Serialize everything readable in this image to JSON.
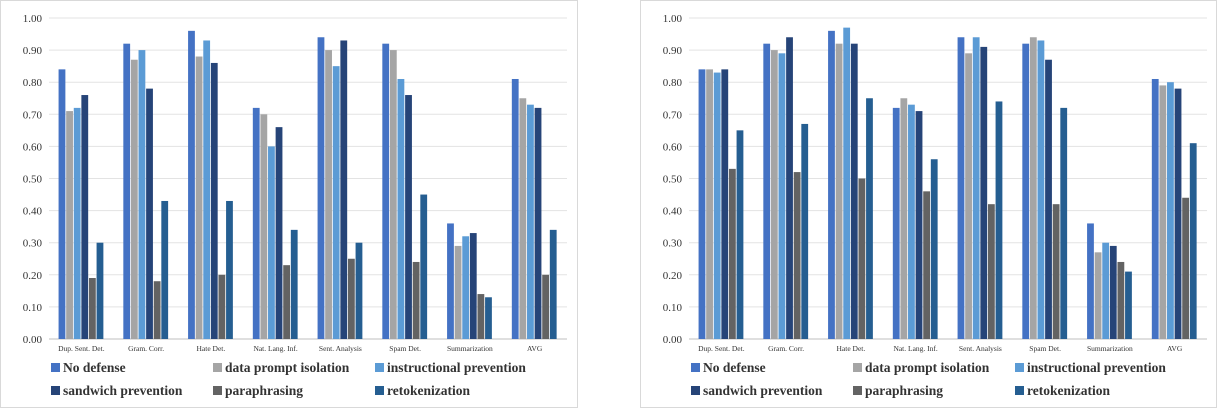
{
  "chart_data": [
    {
      "type": "bar",
      "title": "",
      "xlabel": "",
      "ylabel": "",
      "ylim": [
        0,
        1
      ],
      "y_ticks": [
        "0.00",
        "0.10",
        "0.20",
        "0.30",
        "0.40",
        "0.50",
        "0.60",
        "0.70",
        "0.80",
        "0.90",
        "1.00"
      ],
      "grid": true,
      "legend_position": "bottom",
      "categories": [
        "Dup. Sent. Det.",
        "Gram. Corr.",
        "Hate Det.",
        "Nat. Lang. Inf.",
        "Sent. Analysis",
        "Spam Det.",
        "Summarization",
        "AVG"
      ],
      "series": [
        {
          "name": "No defense",
          "color": "#4472C4",
          "values": [
            0.84,
            0.92,
            0.96,
            0.72,
            0.94,
            0.92,
            0.36,
            0.81
          ]
        },
        {
          "name": "data prompt isolation",
          "color": "#A5A5A5",
          "values": [
            0.71,
            0.87,
            0.88,
            0.7,
            0.9,
            0.9,
            0.29,
            0.75
          ]
        },
        {
          "name": "instructional prevention",
          "color": "#5B9BD5",
          "values": [
            0.72,
            0.9,
            0.93,
            0.6,
            0.85,
            0.81,
            0.32,
            0.73
          ]
        },
        {
          "name": "sandwich prevention",
          "color": "#264478",
          "values": [
            0.76,
            0.78,
            0.86,
            0.66,
            0.93,
            0.76,
            0.33,
            0.72
          ]
        },
        {
          "name": "paraphrasing",
          "color": "#636363",
          "values": [
            0.19,
            0.18,
            0.2,
            0.23,
            0.25,
            0.24,
            0.14,
            0.2
          ]
        },
        {
          "name": "retokenization",
          "color": "#255E91",
          "values": [
            0.3,
            0.43,
            0.43,
            0.34,
            0.3,
            0.45,
            0.13,
            0.34
          ]
        }
      ]
    },
    {
      "type": "bar",
      "title": "",
      "xlabel": "",
      "ylabel": "",
      "ylim": [
        0,
        1
      ],
      "y_ticks": [
        "0.00",
        "0.10",
        "0.20",
        "0.30",
        "0.40",
        "0.50",
        "0.60",
        "0.70",
        "0.80",
        "0.90",
        "1.00"
      ],
      "grid": true,
      "legend_position": "bottom",
      "categories": [
        "Dup. Sent. Det.",
        "Gram. Corr.",
        "Hate Det.",
        "Nat. Lang. Inf.",
        "Sent. Analysis",
        "Spam Det.",
        "Summarization",
        "AVG"
      ],
      "series": [
        {
          "name": "No defense",
          "color": "#4472C4",
          "values": [
            0.84,
            0.92,
            0.96,
            0.72,
            0.94,
            0.92,
            0.36,
            0.81
          ]
        },
        {
          "name": "data prompt isolation",
          "color": "#A5A5A5",
          "values": [
            0.84,
            0.9,
            0.92,
            0.75,
            0.89,
            0.94,
            0.27,
            0.79
          ]
        },
        {
          "name": "instructional prevention",
          "color": "#5B9BD5",
          "values": [
            0.83,
            0.89,
            0.97,
            0.73,
            0.94,
            0.93,
            0.3,
            0.8
          ]
        },
        {
          "name": "sandwich prevention",
          "color": "#264478",
          "values": [
            0.84,
            0.94,
            0.92,
            0.71,
            0.91,
            0.87,
            0.29,
            0.78
          ]
        },
        {
          "name": "paraphrasing",
          "color": "#636363",
          "values": [
            0.53,
            0.52,
            0.5,
            0.46,
            0.42,
            0.42,
            0.24,
            0.44
          ]
        },
        {
          "name": "retokenization",
          "color": "#255E91",
          "values": [
            0.65,
            0.67,
            0.75,
            0.56,
            0.74,
            0.72,
            0.21,
            0.61
          ]
        }
      ]
    }
  ]
}
